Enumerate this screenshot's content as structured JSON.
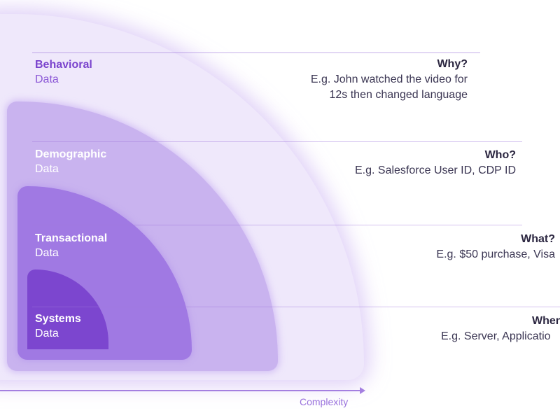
{
  "layers": [
    {
      "name": "Behavioral",
      "sub": "Data",
      "question": "Why?",
      "example_line1": "E.g. John watched the video for",
      "example_line2": "12s then changed language",
      "color": "#efe8fb"
    },
    {
      "name": "Demographic",
      "sub": "Data",
      "question": "Who?",
      "example_line1": "E.g. Salesforce User ID, CDP ID",
      "color": "#c9b3ef"
    },
    {
      "name": "Transactional",
      "sub": "Data",
      "question": "What?",
      "example_line1": "E.g. $50 purchase, Visa",
      "color": "#a079e3"
    },
    {
      "name": "Systems",
      "sub": "Data",
      "question": "When",
      "example_line1": "E.g. Server, Applicatio",
      "color": "#7c46cf"
    }
  ],
  "axis": {
    "label": "Complexity",
    "color": "#a47fe0"
  }
}
